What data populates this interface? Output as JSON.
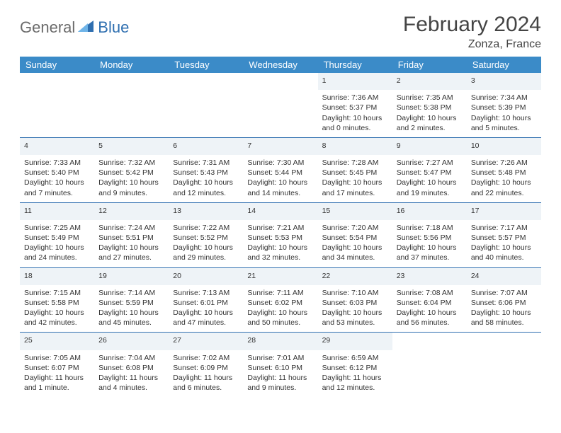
{
  "brand": {
    "part1": "General",
    "part2": "Blue"
  },
  "title": "February 2024",
  "location": "Zonza, France",
  "colors": {
    "header_bg": "#3b8bc8",
    "rule": "#2f6fb0",
    "daynum_bg": "#eef3f7",
    "text": "#333333"
  },
  "weekdays": [
    "Sunday",
    "Monday",
    "Tuesday",
    "Wednesday",
    "Thursday",
    "Friday",
    "Saturday"
  ],
  "weeks": [
    [
      null,
      null,
      null,
      null,
      {
        "n": "1",
        "sr": "7:36 AM",
        "ss": "5:37 PM",
        "dl": "10 hours and 0 minutes."
      },
      {
        "n": "2",
        "sr": "7:35 AM",
        "ss": "5:38 PM",
        "dl": "10 hours and 2 minutes."
      },
      {
        "n": "3",
        "sr": "7:34 AM",
        "ss": "5:39 PM",
        "dl": "10 hours and 5 minutes."
      }
    ],
    [
      {
        "n": "4",
        "sr": "7:33 AM",
        "ss": "5:40 PM",
        "dl": "10 hours and 7 minutes."
      },
      {
        "n": "5",
        "sr": "7:32 AM",
        "ss": "5:42 PM",
        "dl": "10 hours and 9 minutes."
      },
      {
        "n": "6",
        "sr": "7:31 AM",
        "ss": "5:43 PM",
        "dl": "10 hours and 12 minutes."
      },
      {
        "n": "7",
        "sr": "7:30 AM",
        "ss": "5:44 PM",
        "dl": "10 hours and 14 minutes."
      },
      {
        "n": "8",
        "sr": "7:28 AM",
        "ss": "5:45 PM",
        "dl": "10 hours and 17 minutes."
      },
      {
        "n": "9",
        "sr": "7:27 AM",
        "ss": "5:47 PM",
        "dl": "10 hours and 19 minutes."
      },
      {
        "n": "10",
        "sr": "7:26 AM",
        "ss": "5:48 PM",
        "dl": "10 hours and 22 minutes."
      }
    ],
    [
      {
        "n": "11",
        "sr": "7:25 AM",
        "ss": "5:49 PM",
        "dl": "10 hours and 24 minutes."
      },
      {
        "n": "12",
        "sr": "7:24 AM",
        "ss": "5:51 PM",
        "dl": "10 hours and 27 minutes."
      },
      {
        "n": "13",
        "sr": "7:22 AM",
        "ss": "5:52 PM",
        "dl": "10 hours and 29 minutes."
      },
      {
        "n": "14",
        "sr": "7:21 AM",
        "ss": "5:53 PM",
        "dl": "10 hours and 32 minutes."
      },
      {
        "n": "15",
        "sr": "7:20 AM",
        "ss": "5:54 PM",
        "dl": "10 hours and 34 minutes."
      },
      {
        "n": "16",
        "sr": "7:18 AM",
        "ss": "5:56 PM",
        "dl": "10 hours and 37 minutes."
      },
      {
        "n": "17",
        "sr": "7:17 AM",
        "ss": "5:57 PM",
        "dl": "10 hours and 40 minutes."
      }
    ],
    [
      {
        "n": "18",
        "sr": "7:15 AM",
        "ss": "5:58 PM",
        "dl": "10 hours and 42 minutes."
      },
      {
        "n": "19",
        "sr": "7:14 AM",
        "ss": "5:59 PM",
        "dl": "10 hours and 45 minutes."
      },
      {
        "n": "20",
        "sr": "7:13 AM",
        "ss": "6:01 PM",
        "dl": "10 hours and 47 minutes."
      },
      {
        "n": "21",
        "sr": "7:11 AM",
        "ss": "6:02 PM",
        "dl": "10 hours and 50 minutes."
      },
      {
        "n": "22",
        "sr": "7:10 AM",
        "ss": "6:03 PM",
        "dl": "10 hours and 53 minutes."
      },
      {
        "n": "23",
        "sr": "7:08 AM",
        "ss": "6:04 PM",
        "dl": "10 hours and 56 minutes."
      },
      {
        "n": "24",
        "sr": "7:07 AM",
        "ss": "6:06 PM",
        "dl": "10 hours and 58 minutes."
      }
    ],
    [
      {
        "n": "25",
        "sr": "7:05 AM",
        "ss": "6:07 PM",
        "dl": "11 hours and 1 minute."
      },
      {
        "n": "26",
        "sr": "7:04 AM",
        "ss": "6:08 PM",
        "dl": "11 hours and 4 minutes."
      },
      {
        "n": "27",
        "sr": "7:02 AM",
        "ss": "6:09 PM",
        "dl": "11 hours and 6 minutes."
      },
      {
        "n": "28",
        "sr": "7:01 AM",
        "ss": "6:10 PM",
        "dl": "11 hours and 9 minutes."
      },
      {
        "n": "29",
        "sr": "6:59 AM",
        "ss": "6:12 PM",
        "dl": "11 hours and 12 minutes."
      },
      null,
      null
    ]
  ],
  "labels": {
    "sunrise": "Sunrise:",
    "sunset": "Sunset:",
    "daylight": "Daylight:"
  }
}
